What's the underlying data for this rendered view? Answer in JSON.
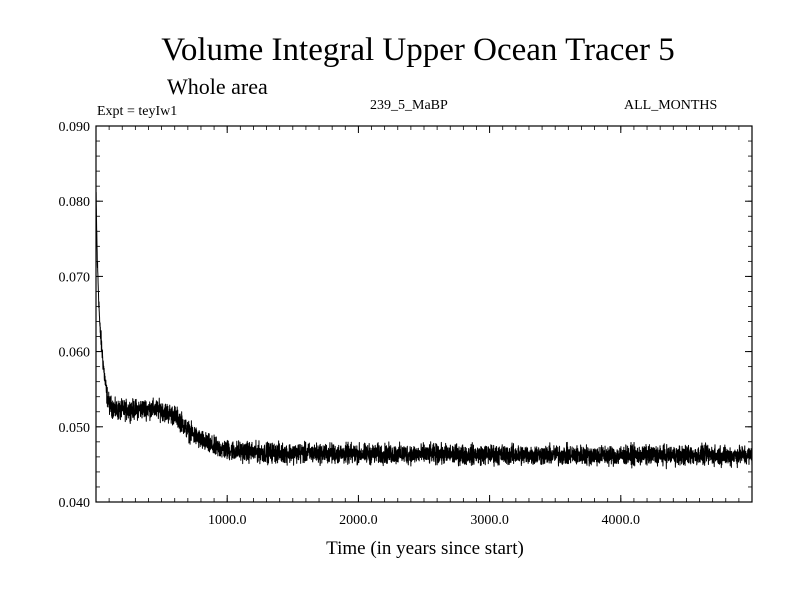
{
  "header": {
    "title": "Volume Integral Upper Ocean Tracer 5",
    "subtitle": "Whole area",
    "expt": "Expt = teyIw1",
    "run": "239_5_MaBP",
    "months": "ALL_MONTHS"
  },
  "chart_data": {
    "type": "line",
    "title": "Volume Integral Upper Ocean Tracer 5",
    "subtitle": "Whole area",
    "xlabel": "Time (in years since start)",
    "ylabel": "",
    "xlim": [
      0,
      5000
    ],
    "ylim": [
      0.04,
      0.09
    ],
    "x_ticks": [
      1000,
      2000,
      3000,
      4000
    ],
    "x_tick_labels": [
      "1000.0",
      "2000.0",
      "3000.0",
      "4000.0"
    ],
    "y_ticks": [
      0.04,
      0.05,
      0.06,
      0.07,
      0.08,
      0.09
    ],
    "y_tick_labels": [
      "0.040",
      "0.050",
      "0.060",
      "0.070",
      "0.080",
      "0.090"
    ],
    "grid": false,
    "series": [
      {
        "name": "Tracer 5",
        "color": "#000000",
        "trend": {
          "x": [
            0,
            10,
            30,
            60,
            80,
            100,
            150,
            200,
            300,
            400,
            500,
            550,
            600,
            650,
            700,
            800,
            900,
            1000,
            1200,
            1500,
            2000,
            3000,
            4000,
            5000
          ],
          "y": [
            0.081,
            0.072,
            0.063,
            0.0575,
            0.0545,
            0.053,
            0.0522,
            0.0522,
            0.0523,
            0.0524,
            0.0522,
            0.0518,
            0.0515,
            0.0507,
            0.0495,
            0.0482,
            0.0473,
            0.0469,
            0.0466,
            0.0465,
            0.0464,
            0.0463,
            0.0462,
            0.0462
          ]
        },
        "noise_amplitude": 0.0012
      }
    ]
  }
}
